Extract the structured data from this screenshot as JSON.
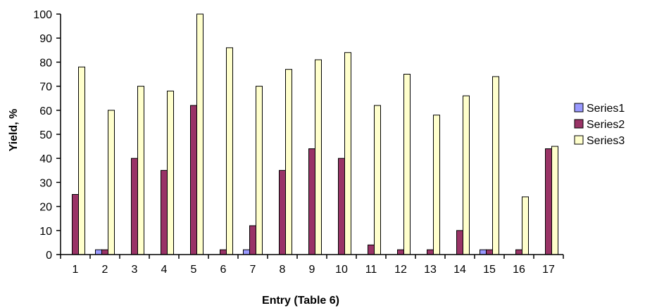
{
  "chart_data": {
    "type": "bar",
    "title": "",
    "xlabel": "Entry (Table 6)",
    "ylabel": "Yield, %",
    "ylim": [
      0,
      100
    ],
    "yticks": [
      0,
      10,
      20,
      30,
      40,
      50,
      60,
      70,
      80,
      90,
      100
    ],
    "grid": false,
    "legend_position": "right",
    "categories": [
      "1",
      "2",
      "3",
      "4",
      "5",
      "6",
      "7",
      "8",
      "9",
      "10",
      "11",
      "12",
      "13",
      "14",
      "15",
      "16",
      "17"
    ],
    "series": [
      {
        "name": "Series1",
        "color": "#9999ff",
        "values": [
          0,
          2,
          0,
          0,
          0,
          0,
          2,
          0,
          0,
          0,
          0,
          0,
          0,
          0,
          2,
          0,
          0
        ]
      },
      {
        "name": "Series2",
        "color": "#993366",
        "values": [
          25,
          2,
          40,
          35,
          62,
          2,
          12,
          35,
          44,
          40,
          4,
          2,
          2,
          10,
          2,
          2,
          44
        ]
      },
      {
        "name": "Series3",
        "color": "#ffffcc",
        "values": [
          78,
          60,
          70,
          68,
          100,
          86,
          70,
          77,
          81,
          84,
          62,
          75,
          58,
          66,
          74,
          24,
          45
        ]
      }
    ]
  }
}
